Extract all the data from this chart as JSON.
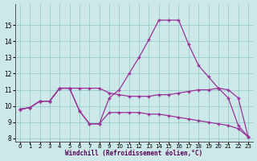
{
  "xlabel": "Windchill (Refroidissement éolien,°C)",
  "background_color": "#cce8e8",
  "grid_color": "#99cccc",
  "line_color": "#993399",
  "hours": [
    0,
    1,
    2,
    3,
    4,
    5,
    6,
    7,
    8,
    9,
    10,
    11,
    12,
    13,
    14,
    15,
    16,
    17,
    18,
    19,
    20,
    21,
    22,
    23
  ],
  "temp": [
    9.8,
    9.9,
    10.3,
    10.3,
    11.1,
    11.1,
    9.7,
    8.9,
    8.9,
    10.5,
    11.0,
    12.0,
    13.0,
    14.1,
    15.3,
    15.3,
    15.3,
    13.8,
    12.5,
    11.8,
    11.1,
    10.5,
    8.8,
    8.1
  ],
  "wc_upper": [
    9.8,
    9.9,
    10.3,
    10.3,
    11.1,
    11.1,
    11.1,
    11.1,
    11.1,
    10.8,
    10.7,
    10.6,
    10.6,
    10.6,
    10.7,
    10.7,
    10.8,
    10.9,
    11.0,
    11.0,
    11.1,
    11.0,
    10.5,
    8.1
  ],
  "wc_lower": [
    9.8,
    9.9,
    10.3,
    10.3,
    11.1,
    11.1,
    9.7,
    8.9,
    8.9,
    9.6,
    9.6,
    9.6,
    9.6,
    9.5,
    9.5,
    9.4,
    9.3,
    9.2,
    9.1,
    9.0,
    8.9,
    8.8,
    8.6,
    8.1
  ],
  "ylim_min": 8,
  "ylim_max": 16,
  "yticks": [
    8,
    9,
    10,
    11,
    12,
    13,
    14,
    15
  ],
  "xtick_labels": [
    "0",
    "1",
    "2",
    "3",
    "4",
    "5",
    "6",
    "7",
    "8",
    "9",
    "10",
    "11",
    "12",
    "13",
    "14",
    "15",
    "16",
    "17",
    "18",
    "19",
    "20",
    "21",
    "22",
    "23"
  ]
}
